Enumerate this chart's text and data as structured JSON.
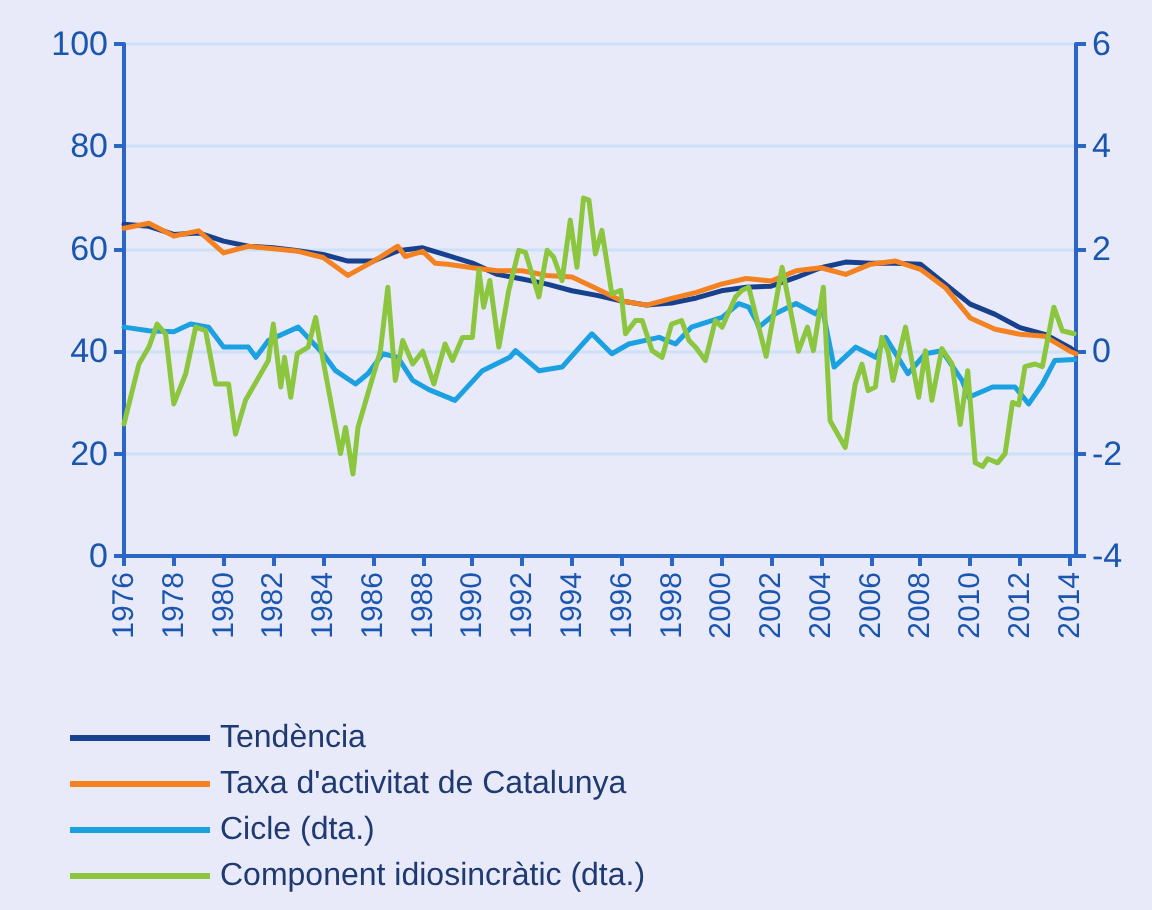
{
  "chart_data": {
    "type": "line",
    "xlim": [
      1976,
      2014.25
    ],
    "xticks": [
      1976,
      1978,
      1980,
      1982,
      1984,
      1986,
      1988,
      1990,
      1992,
      1994,
      1996,
      1998,
      2000,
      2002,
      2004,
      2006,
      2008,
      2010,
      2012,
      2014
    ],
    "ylim": [
      0,
      100
    ],
    "yticks": [
      0,
      20,
      40,
      60,
      80,
      100
    ],
    "y2lim": [
      -4,
      6
    ],
    "y2ticks": [
      -4,
      -2,
      0,
      2,
      4,
      6
    ],
    "grid": "y",
    "legend": "bottom",
    "marker": "none",
    "line_style": "solid",
    "series": [
      {
        "name": "Tendència",
        "color": "#17408e",
        "x": [
          1976,
          1977,
          1978,
          1979,
          1980,
          1981,
          1982,
          1983,
          1984,
          1985,
          1986,
          1987,
          1988,
          1989,
          1990,
          1991,
          1992,
          1993,
          1994,
          1995,
          1996,
          1997,
          1998,
          1999,
          2000,
          2001,
          2002,
          2003,
          2004,
          2005,
          2006,
          2007,
          2008,
          2009,
          2010,
          2011,
          2012,
          2013,
          2014,
          2014.25
        ],
        "values": [
          64.8,
          64.4,
          62.8,
          63.1,
          61.5,
          60.5,
          60.2,
          59.6,
          58.9,
          57.6,
          57.6,
          59.6,
          60.2,
          58.7,
          57.2,
          55,
          54.1,
          53.1,
          51.8,
          50.9,
          49.8,
          49,
          49.4,
          50.4,
          51.8,
          52.5,
          52.7,
          54.4,
          56.3,
          57.4,
          57.2,
          57.2,
          57,
          53.1,
          49.2,
          47.2,
          44.6,
          43.3,
          40.7,
          39.8
        ]
      },
      {
        "name": "Taxa d'activitat de Catalunya",
        "color": "#f58220",
        "x": [
          1976,
          1977,
          1978,
          1979,
          1980,
          1981,
          1982,
          1983,
          1984,
          1985,
          1986,
          1987,
          1987.3,
          1988,
          1988.5,
          1989,
          1990,
          1991,
          1992,
          1993,
          1994,
          1995,
          1996,
          1997,
          1998,
          1999,
          2000,
          2001,
          2002,
          2003,
          2004,
          2005,
          2006,
          2007,
          2008,
          2009,
          2010,
          2011,
          2012,
          2013,
          2014,
          2014.25
        ],
        "values": [
          64,
          65,
          62.5,
          63.5,
          59.2,
          60.5,
          60,
          59.5,
          58.3,
          54.8,
          57.5,
          60.5,
          58.5,
          59.5,
          57.2,
          57,
          56.3,
          55.7,
          55.7,
          54.8,
          54.5,
          52.2,
          49.8,
          49,
          50.3,
          51.5,
          53.1,
          54.2,
          53.7,
          55.7,
          56.3,
          55,
          57,
          57.6,
          56,
          52.4,
          46.5,
          44.3,
          43.3,
          42.9,
          40,
          39.5
        ]
      },
      {
        "name": "Cicle (dta.)",
        "color": "#1ba1e2",
        "axis": "y2",
        "x": [
          1976,
          1977,
          1978,
          1978.67,
          1979.4,
          1980,
          1981,
          1981.3,
          1981.8,
          1983,
          1984,
          1984.5,
          1985.3,
          1985.8,
          1986.4,
          1987,
          1987.6,
          1988.25,
          1989.3,
          1990.4,
          1991.5,
          1991.73,
          1992.67,
          1993.6,
          1994.35,
          1994.8,
          1995.6,
          1996.28,
          1997.5,
          1998.16,
          1998.8,
          2000.03,
          2000.7,
          2001.1,
          2001.4,
          2001.5,
          2002.17,
          2003,
          2003.78,
          2004.05,
          2004.53,
          2005.4,
          2006.2,
          2006.6,
          2007.5,
          2008.2,
          2008.86,
          2009.67,
          2009.94,
          2010.9,
          2011.8,
          2012.35,
          2012.9,
          2013.4,
          2014.2
        ],
        "values": [
          0.47,
          0.4,
          0.38,
          0.53,
          0.47,
          0.08,
          0.08,
          -0.12,
          0.21,
          0.47,
          -0.05,
          -0.38,
          -0.64,
          -0.44,
          -0.05,
          -0.12,
          -0.57,
          -0.75,
          -0.96,
          -0.38,
          -0.12,
          0.01,
          -0.38,
          -0.31,
          0.1,
          0.34,
          -0.05,
          0.14,
          0.27,
          0.14,
          0.47,
          0.66,
          0.93,
          0.86,
          0.6,
          0.47,
          0.73,
          0.93,
          0.73,
          0.86,
          -0.31,
          0.08,
          -0.12,
          0.27,
          -0.44,
          -0.05,
          0.01,
          -0.57,
          -0.9,
          -0.7,
          -0.7,
          -1.03,
          -0.64,
          -0.18,
          -0.16
        ]
      },
      {
        "name": "Component idiosincràtic (dta.)",
        "color": "#8cc63f",
        "axis": "y2",
        "x": [
          1976,
          1976.6,
          1977,
          1977.33,
          1977.67,
          1978,
          1978.48,
          1978.88,
          1979.28,
          1979.68,
          1980.2,
          1980.48,
          1980.88,
          1981.8,
          1982,
          1982.3,
          1982.45,
          1982.7,
          1982.96,
          1983.4,
          1983.7,
          1984,
          1984.7,
          1984.9,
          1985.2,
          1985.4,
          1986.3,
          1986.6,
          1986.9,
          1987.2,
          1987.6,
          1988,
          1988.45,
          1988.9,
          1989.2,
          1989.6,
          1990,
          1990.26,
          1990.45,
          1990.7,
          1991.06,
          1991.46,
          1991.86,
          1992.13,
          1992.67,
          1993,
          1993.26,
          1993.6,
          1993.93,
          1994.2,
          1994.46,
          1994.68,
          1994.94,
          1995.2,
          1995.6,
          1995.96,
          1996.15,
          1996.55,
          1996.82,
          1997.22,
          1997.62,
          1998,
          1998.4,
          1998.7,
          1998.96,
          1999.36,
          1999.76,
          2000.03,
          2000.57,
          2000.83,
          2001.1,
          2001.8,
          2002.44,
          2003.1,
          2003.46,
          2003.7,
          2004.1,
          2004.37,
          2004.98,
          2005.38,
          2005.65,
          2005.9,
          2006.19,
          2006.45,
          2006.7,
          2006.9,
          2007.4,
          2007.93,
          2008.2,
          2008.46,
          2008.86,
          2009.27,
          2009.6,
          2009.9,
          2010.2,
          2010.5,
          2010.7,
          2011.1,
          2011.4,
          2011.7,
          2011.95,
          2012.2,
          2012.6,
          2012.9,
          2013.36,
          2013.7,
          2014.17
        ],
        "values": [
          -1.42,
          -0.25,
          0.08,
          0.53,
          0.34,
          -1.03,
          -0.44,
          0.47,
          0.4,
          -0.64,
          -0.64,
          -1.62,
          -0.96,
          -0.18,
          0.53,
          -0.7,
          -0.12,
          -0.9,
          -0.05,
          0.08,
          0.66,
          -0.18,
          -2,
          -1.49,
          -2.4,
          -1.49,
          0,
          1.25,
          -0.57,
          0.21,
          -0.25,
          0,
          -0.64,
          0.14,
          -0.18,
          0.27,
          0.27,
          1.58,
          0.86,
          1.38,
          0.08,
          1.19,
          1.97,
          1.93,
          1.06,
          1.97,
          1.84,
          1.38,
          2.56,
          1.64,
          2.99,
          2.95,
          1.9,
          2.36,
          1.12,
          1.19,
          0.34,
          0.6,
          0.6,
          0.01,
          -0.12,
          0.53,
          0.6,
          0.21,
          0.08,
          -0.18,
          0.6,
          0.47,
          1.06,
          1.19,
          1.25,
          -0.1,
          1.64,
          0,
          0.47,
          0.01,
          1.25,
          -1.36,
          -1.88,
          -0.64,
          -0.25,
          -0.77,
          -0.7,
          0.27,
          0,
          -0.57,
          0.47,
          -0.9,
          0.01,
          -0.96,
          0.05,
          -0.25,
          -1.43,
          -0.38,
          -2.18,
          -2.25,
          -2.1,
          -2.18,
          -2,
          -1,
          -1.05,
          -0.3,
          -0.25,
          -0.3,
          0.86,
          0.4,
          0.34
        ]
      }
    ]
  }
}
